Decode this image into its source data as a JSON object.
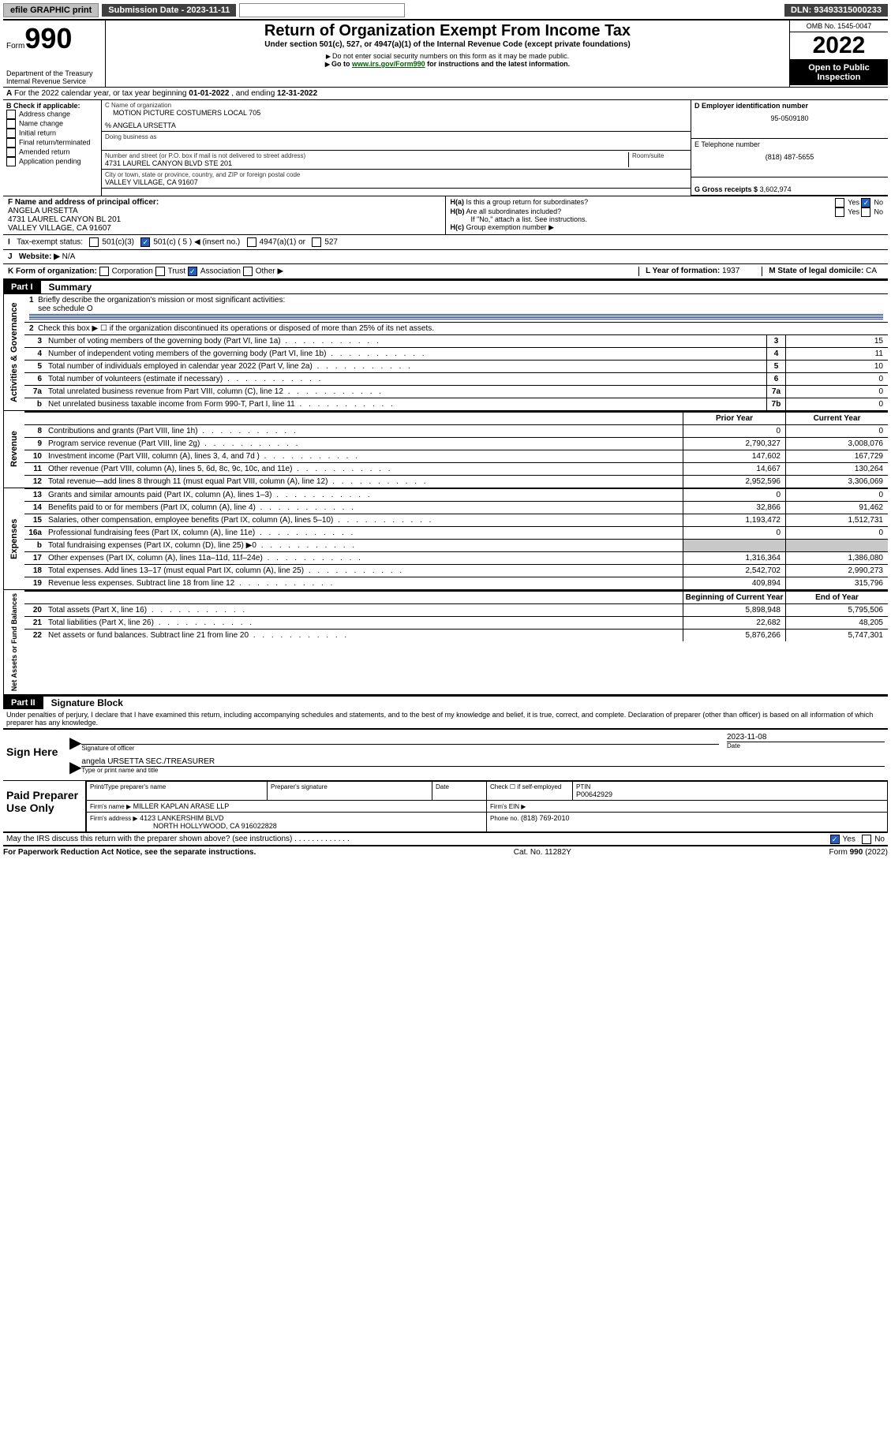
{
  "topbar": {
    "efile": "efile GRAPHIC print",
    "submission_lbl": "Submission Date - 2023-11-11",
    "dln": "DLN: 93493315000233"
  },
  "header": {
    "form_word": "Form",
    "form_num": "990",
    "dept": "Department of the Treasury",
    "irs": "Internal Revenue Service",
    "title": "Return of Organization Exempt From Income Tax",
    "subtitle": "Under section 501(c), 527, or 4947(a)(1) of the Internal Revenue Code (except private foundations)",
    "note1": "Do not enter social security numbers on this form as it may be made public.",
    "note2_pre": "Go to ",
    "note2_link": "www.irs.gov/Form990",
    "note2_post": " for instructions and the latest information.",
    "omb": "OMB No. 1545-0047",
    "year": "2022",
    "open": "Open to Public Inspection"
  },
  "A": {
    "text": "For the 2022 calendar year, or tax year beginning ",
    "begin": "01-01-2022",
    "mid": " , and ending ",
    "end": "12-31-2022"
  },
  "B": {
    "label": "B Check if applicable:",
    "items": [
      "Address change",
      "Name change",
      "Initial return",
      "Final return/terminated",
      "Amended return",
      "Application pending"
    ]
  },
  "C": {
    "name_lbl": "C Name of organization",
    "name": "MOTION PICTURE COSTUMERS LOCAL 705",
    "care_of": "% ANGELA URSETTA",
    "dba_lbl": "Doing business as",
    "street_lbl": "Number and street (or P.O. box if mail is not delivered to street address)",
    "room_lbl": "Room/suite",
    "street": "4731 LAUREL CANYON BLVD STE 201",
    "city_lbl": "City or town, state or province, country, and ZIP or foreign postal code",
    "city": "VALLEY VILLAGE, CA  91607"
  },
  "D": {
    "lbl": "D Employer identification number",
    "val": "95-0509180"
  },
  "E": {
    "lbl": "E Telephone number",
    "val": "(818) 487-5655"
  },
  "G": {
    "lbl": "G Gross receipts $",
    "val": "3,602,974"
  },
  "F": {
    "lbl": "F Name and address of principal officer:",
    "name": "ANGELA URSETTA",
    "addr1": "4731 LAUREL CANYON BL 201",
    "addr2": "VALLEY VILLAGE, CA  91607"
  },
  "H": {
    "a_lbl": "Is this a group return for subordinates?",
    "a_yes": "Yes",
    "a_no": "No",
    "b_lbl": "Are all subordinates included?",
    "b_note": "If \"No,\" attach a list. See instructions.",
    "c_lbl": "Group exemption number ▶"
  },
  "I": {
    "lbl": "Tax-exempt status:",
    "c3": "501(c)(3)",
    "c5": "501(c) ( 5 ) ◀ (insert no.)",
    "a1": "4947(a)(1) or",
    "s527": "527"
  },
  "J": {
    "lbl": "Website: ▶",
    "val": "N/A"
  },
  "K": {
    "lbl": "K Form of organization:",
    "corp": "Corporation",
    "trust": "Trust",
    "assoc": "Association",
    "other": "Other ▶"
  },
  "L": {
    "lbl": "L Year of formation:",
    "val": "1937"
  },
  "M": {
    "lbl": "M State of legal domicile:",
    "val": "CA"
  },
  "part1": {
    "hdr": "Part I",
    "title": "Summary",
    "l1": "Briefly describe the organization's mission or most significant activities:",
    "l1_val": "see schedule O",
    "l2": "Check this box ▶ ☐  if the organization discontinued its operations or disposed of more than 25% of its net assets.",
    "gov": "Activities & Governance",
    "rev": "Revenue",
    "exp": "Expenses",
    "net": "Net Assets or Fund Balances",
    "col_prior": "Prior Year",
    "col_curr": "Current Year",
    "col_boy": "Beginning of Current Year",
    "col_eoy": "End of Year",
    "rows_gov": [
      {
        "n": "3",
        "d": "Number of voting members of the governing body (Part VI, line 1a)",
        "c": "3",
        "v": "15"
      },
      {
        "n": "4",
        "d": "Number of independent voting members of the governing body (Part VI, line 1b)",
        "c": "4",
        "v": "11"
      },
      {
        "n": "5",
        "d": "Total number of individuals employed in calendar year 2022 (Part V, line 2a)",
        "c": "5",
        "v": "10"
      },
      {
        "n": "6",
        "d": "Total number of volunteers (estimate if necessary)",
        "c": "6",
        "v": "0"
      },
      {
        "n": "7a",
        "d": "Total unrelated business revenue from Part VIII, column (C), line 12",
        "c": "7a",
        "v": "0"
      },
      {
        "n": "b",
        "d": "Net unrelated business taxable income from Form 990-T, Part I, line 11",
        "c": "7b",
        "v": "0"
      }
    ],
    "rows_rev": [
      {
        "n": "8",
        "d": "Contributions and grants (Part VIII, line 1h)",
        "p": "0",
        "c": "0"
      },
      {
        "n": "9",
        "d": "Program service revenue (Part VIII, line 2g)",
        "p": "2,790,327",
        "c": "3,008,076"
      },
      {
        "n": "10",
        "d": "Investment income (Part VIII, column (A), lines 3, 4, and 7d )",
        "p": "147,602",
        "c": "167,729"
      },
      {
        "n": "11",
        "d": "Other revenue (Part VIII, column (A), lines 5, 6d, 8c, 9c, 10c, and 11e)",
        "p": "14,667",
        "c": "130,264"
      },
      {
        "n": "12",
        "d": "Total revenue—add lines 8 through 11 (must equal Part VIII, column (A), line 12)",
        "p": "2,952,596",
        "c": "3,306,069"
      }
    ],
    "rows_exp": [
      {
        "n": "13",
        "d": "Grants and similar amounts paid (Part IX, column (A), lines 1–3)",
        "p": "0",
        "c": "0"
      },
      {
        "n": "14",
        "d": "Benefits paid to or for members (Part IX, column (A), line 4)",
        "p": "32,866",
        "c": "91,462"
      },
      {
        "n": "15",
        "d": "Salaries, other compensation, employee benefits (Part IX, column (A), lines 5–10)",
        "p": "1,193,472",
        "c": "1,512,731"
      },
      {
        "n": "16a",
        "d": "Professional fundraising fees (Part IX, column (A), line 11e)",
        "p": "0",
        "c": "0"
      },
      {
        "n": "b",
        "d": "Total fundraising expenses (Part IX, column (D), line 25) ▶0",
        "p": "",
        "c": "",
        "gray": true
      },
      {
        "n": "17",
        "d": "Other expenses (Part IX, column (A), lines 11a–11d, 11f–24e)",
        "p": "1,316,364",
        "c": "1,386,080"
      },
      {
        "n": "18",
        "d": "Total expenses. Add lines 13–17 (must equal Part IX, column (A), line 25)",
        "p": "2,542,702",
        "c": "2,990,273"
      },
      {
        "n": "19",
        "d": "Revenue less expenses. Subtract line 18 from line 12",
        "p": "409,894",
        "c": "315,796"
      }
    ],
    "rows_net": [
      {
        "n": "20",
        "d": "Total assets (Part X, line 16)",
        "p": "5,898,948",
        "c": "5,795,506"
      },
      {
        "n": "21",
        "d": "Total liabilities (Part X, line 26)",
        "p": "22,682",
        "c": "48,205"
      },
      {
        "n": "22",
        "d": "Net assets or fund balances. Subtract line 21 from line 20",
        "p": "5,876,266",
        "c": "5,747,301"
      }
    ]
  },
  "part2": {
    "hdr": "Part II",
    "title": "Signature Block",
    "decl": "Under penalties of perjury, I declare that I have examined this return, including accompanying schedules and statements, and to the best of my knowledge and belief, it is true, correct, and complete. Declaration of preparer (other than officer) is based on all information of which preparer has any knowledge.",
    "sign_here": "Sign Here",
    "sig_officer_lbl": "Signature of officer",
    "date_lbl": "Date",
    "date_val": "2023-11-08",
    "name_title": "angela URSETTA  SEC./TREASURER",
    "name_title_lbl": "Type or print name and title",
    "paid": "Paid Preparer Use Only",
    "pp_name_lbl": "Print/Type preparer's name",
    "pp_sig_lbl": "Preparer's signature",
    "pp_date_lbl": "Date",
    "pp_check_lbl": "Check ☐ if self-employed",
    "ptin_lbl": "PTIN",
    "ptin": "P00642929",
    "firm_name_lbl": "Firm's name  ▶",
    "firm_name": "MILLER KAPLAN ARASE LLP",
    "firm_ein_lbl": "Firm's EIN ▶",
    "firm_addr_lbl": "Firm's address ▶",
    "firm_addr1": "4123 LANKERSHIM BLVD",
    "firm_addr2": "NORTH HOLLYWOOD, CA  916022828",
    "phone_lbl": "Phone no.",
    "phone": "(818) 769-2010",
    "discuss": "May the IRS discuss this return with the preparer shown above? (see instructions)",
    "yes": "Yes",
    "no": "No"
  },
  "footer": {
    "pra": "For Paperwork Reduction Act Notice, see the separate instructions.",
    "cat": "Cat. No. 11282Y",
    "form": "Form 990 (2022)"
  }
}
